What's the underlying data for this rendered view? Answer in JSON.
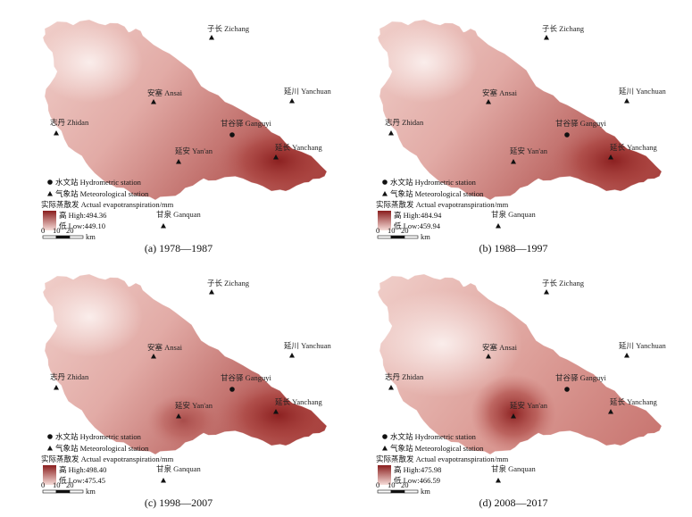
{
  "colors": {
    "high": "#8a1e1e",
    "low": "#f6dcd8",
    "mid": "#d7908c"
  },
  "labels": {
    "zichang": "子长 Zichang",
    "yanchuan": "延川 Yanchuan",
    "ansai": "安塞 Ansai",
    "zhidan": "志丹 Zhidan",
    "ganguyi": "甘谷驿 Ganguyi",
    "yanan": "延安 Yan'an",
    "yanchang": "延长 Yanchang",
    "ganquan": "甘泉 Ganquan"
  },
  "legend": {
    "hydro": "水文站 Hydrometric station",
    "meteo": "气象站 Meteorological station",
    "title": "实际蒸散发 Actual evapotranspiration/mm",
    "scale": {
      "t0": "0",
      "t1": "10",
      "t2": "20",
      "unit": "km"
    }
  },
  "panels": [
    {
      "caption": "(a) 1978—1987",
      "high": "高 High:494.36",
      "low": "低 Low:449.10",
      "hotspot": "yanchang"
    },
    {
      "caption": "(b) 1988—1997",
      "high": "高 High:484.94",
      "low": "低 Low:459.94",
      "hotspot": "yanchang"
    },
    {
      "caption": "(c) 1998—2007",
      "high": "高 High:498.40",
      "low": "低 Low:475.45",
      "hotspot": "yanchang"
    },
    {
      "caption": "(d) 2008—2017",
      "high": "高 High:475.98",
      "low": "低 Low:466.59",
      "hotspot": "yanan"
    }
  ]
}
